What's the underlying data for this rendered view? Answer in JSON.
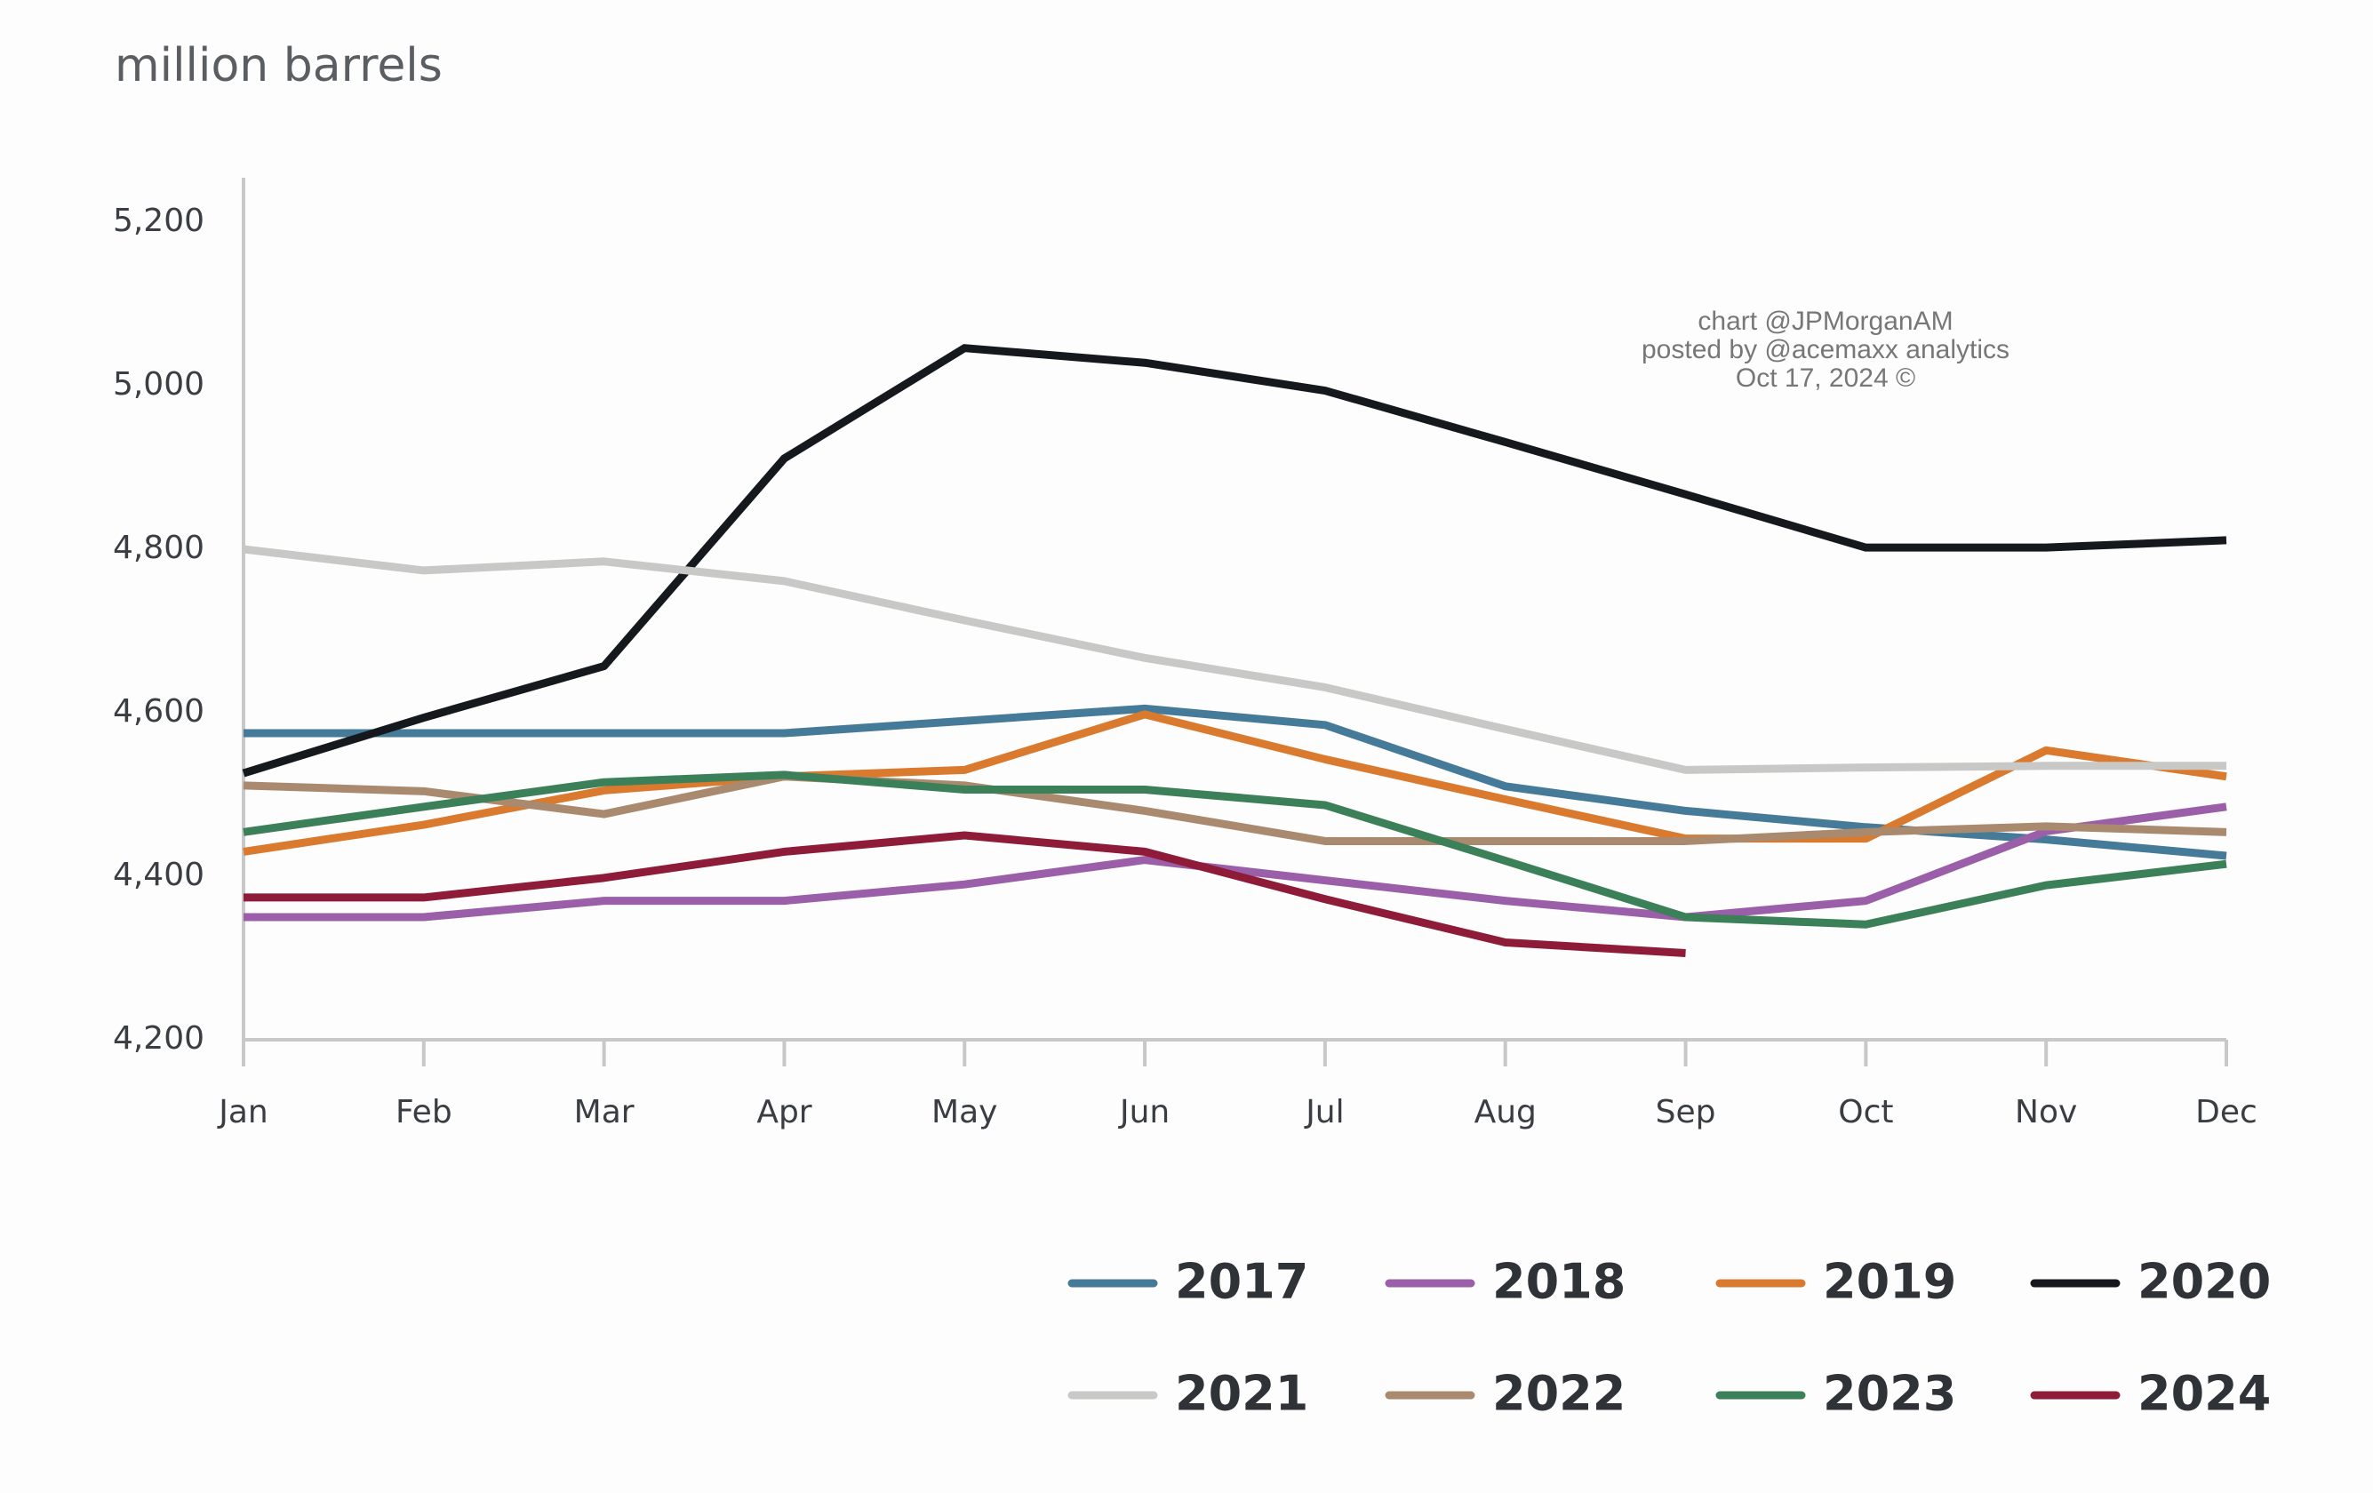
{
  "chart_data": {
    "type": "line",
    "title": "million barrels",
    "annotations": [
      "chart @JPMorganAM",
      "posted by @acemaxx analytics",
      "Oct 17, 2024 ©"
    ],
    "categories": [
      "Jan",
      "Feb",
      "Mar",
      "Apr",
      "May",
      "Jun",
      "Jul",
      "Aug",
      "Sep",
      "Oct",
      "Nov",
      "Dec"
    ],
    "ylim": [
      4200,
      5200
    ],
    "yticks": [
      {
        "value": 4200,
        "label": "4,200"
      },
      {
        "value": 4400,
        "label": "4,400"
      },
      {
        "value": 4600,
        "label": "4,600"
      },
      {
        "value": 4800,
        "label": "4,800"
      },
      {
        "value": 5000,
        "label": "5,000"
      },
      {
        "value": 5200,
        "label": "5,200"
      }
    ],
    "grid": false,
    "series": [
      {
        "name": "2017",
        "color": "#457b98",
        "values": [
          4575,
          4575,
          4575,
          4575,
          4590,
          4605,
          4585,
          4510,
          4480,
          4460,
          4445,
          4425
        ]
      },
      {
        "name": "2018",
        "color": "#9a5fa8",
        "values": [
          4350,
          4350,
          4370,
          4370,
          4390,
          4420,
          4395,
          4370,
          4350,
          4370,
          4455,
          4485
        ]
      },
      {
        "name": "2019",
        "color": "#d97a2e",
        "values": [
          4430,
          4463,
          4505,
          4522,
          4530,
          4598,
          4543,
          4494,
          4446,
          4446,
          4554,
          4522
        ]
      },
      {
        "name": "2020",
        "color": "#15191e",
        "values": [
          4526,
          4594,
          4657,
          4911,
          5046,
          5028,
          4994,
          4931,
          4867,
          4802,
          4802,
          4811
        ]
      },
      {
        "name": "2021",
        "color": "#c8c9c7",
        "values": [
          4800,
          4774,
          4785,
          4761,
          4713,
          4667,
          4631,
          4580,
          4530,
          4533,
          4535,
          4535
        ]
      },
      {
        "name": "2022",
        "color": "#a98a6e",
        "values": [
          4511,
          4504,
          4476,
          4522,
          4511,
          4480,
          4443,
          4443,
          4443,
          4454,
          4461,
          4454
        ]
      },
      {
        "name": "2023",
        "color": "#3c8059",
        "values": [
          4454,
          4485,
          4515,
          4524,
          4506,
          4506,
          4487,
          4419,
          4350,
          4341,
          4389,
          4415
        ]
      },
      {
        "name": "2024",
        "color": "#8e1b38",
        "values": [
          4374,
          4374,
          4398,
          4430,
          4450,
          4430,
          4372,
          4319,
          4306,
          null,
          null,
          null
        ]
      }
    ]
  }
}
